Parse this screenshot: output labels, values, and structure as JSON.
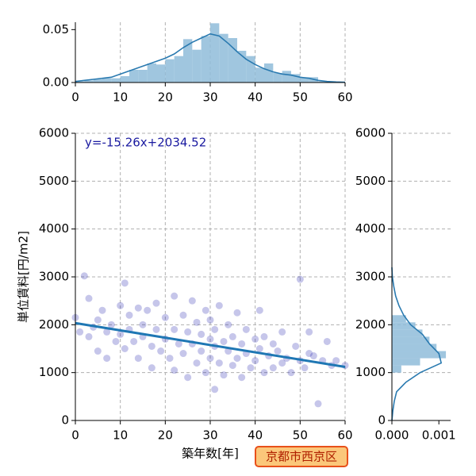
{
  "chart_data": [
    {
      "type": "scatter",
      "color": "#1a1aaa",
      "grid": true,
      "xlabel": "築年数[年]",
      "ylabel": "単位賃料[円/m2]",
      "annotation": "y=-15.26x+2034.52",
      "xlim": [
        0,
        60
      ],
      "ylim": [
        0,
        6000
      ],
      "xticks": [
        0,
        10,
        20,
        30,
        40,
        50,
        60
      ],
      "yticks": [
        0,
        1000,
        2000,
        3000,
        4000,
        5000,
        6000
      ],
      "x": [
        0,
        1,
        2,
        3,
        3,
        4,
        5,
        5,
        6,
        7,
        7,
        8,
        9,
        10,
        10,
        11,
        11,
        12,
        12,
        13,
        14,
        14,
        15,
        15,
        16,
        17,
        17,
        18,
        18,
        19,
        20,
        20,
        21,
        22,
        22,
        22,
        23,
        24,
        24,
        25,
        25,
        26,
        26,
        27,
        27,
        28,
        28,
        29,
        29,
        30,
        30,
        30,
        31,
        31,
        31,
        32,
        32,
        33,
        33,
        34,
        34,
        35,
        35,
        36,
        36,
        37,
        37,
        38,
        38,
        39,
        40,
        40,
        41,
        41,
        42,
        42,
        43,
        44,
        44,
        45,
        46,
        46,
        47,
        48,
        49,
        50,
        50,
        51,
        52,
        52,
        53,
        54,
        55,
        56,
        57,
        58,
        60
      ],
      "values": [
        2150,
        1850,
        3020,
        2550,
        1750,
        1950,
        2100,
        1450,
        2300,
        1850,
        1300,
        2000,
        1650,
        2400,
        1800,
        2870,
        1500,
        2200,
        1900,
        1650,
        2350,
        1300,
        2000,
        1750,
        2300,
        1550,
        1100,
        2450,
        1900,
        1450,
        2150,
        1700,
        1300,
        2600,
        1900,
        1050,
        1600,
        2200,
        1400,
        1850,
        900,
        2500,
        1600,
        1200,
        2050,
        1800,
        1450,
        2300,
        1000,
        1700,
        1300,
        2100,
        1550,
        650,
        1900,
        1200,
        2400,
        1650,
        950,
        1450,
        2000,
        1750,
        1150,
        1300,
        2250,
        1600,
        900,
        1400,
        1900,
        1100,
        1700,
        1250,
        2300,
        1500,
        1000,
        1750,
        1350,
        1600,
        1100,
        1450,
        1200,
        1850,
        1300,
        1000,
        1550,
        2950,
        1250,
        1100,
        1400,
        1850,
        1350,
        350,
        1250,
        1650,
        1150,
        1250,
        1150
      ],
      "regression": {
        "color": "#1f77b4",
        "x": [
          0,
          60
        ],
        "values": [
          2034.52,
          1118.92
        ]
      }
    },
    {
      "type": "histogram",
      "color": "#8fbcd9",
      "grid": true,
      "xlim": [
        0,
        60
      ],
      "ylim": [
        0,
        0.057
      ],
      "xticks": [
        0,
        10,
        20,
        30,
        40,
        50,
        60
      ],
      "yticks": [
        {
          "value": 0,
          "label": "0.00"
        },
        {
          "value": 0.05,
          "label": "0.05"
        }
      ],
      "bins": [
        0,
        2,
        4,
        6,
        8,
        10,
        12,
        14,
        16,
        18,
        20,
        22,
        24,
        26,
        28,
        30,
        32,
        34,
        36,
        38,
        40,
        42,
        44,
        46,
        48,
        50,
        52,
        54,
        56
      ],
      "values": [
        0.001,
        0.002,
        0.003,
        0.004,
        0.004,
        0.006,
        0.012,
        0.012,
        0.018,
        0.017,
        0.022,
        0.025,
        0.041,
        0.031,
        0.044,
        0.056,
        0.046,
        0.042,
        0.03,
        0.025,
        0.014,
        0.018,
        0.009,
        0.011,
        0.008,
        0.005,
        0.005,
        0.001
      ],
      "kde": {
        "color": "#2a7ab0",
        "x": [
          0,
          2,
          4,
          6,
          8,
          10,
          12,
          14,
          16,
          18,
          20,
          22,
          24,
          26,
          28,
          30,
          32,
          34,
          36,
          38,
          40,
          42,
          44,
          46,
          48,
          50,
          52,
          54,
          56,
          58,
          60
        ],
        "values": [
          0.001,
          0.002,
          0.003,
          0.004,
          0.005,
          0.008,
          0.011,
          0.014,
          0.017,
          0.02,
          0.023,
          0.027,
          0.033,
          0.038,
          0.042,
          0.046,
          0.044,
          0.037,
          0.029,
          0.022,
          0.017,
          0.013,
          0.01,
          0.008,
          0.007,
          0.005,
          0.004,
          0.002,
          0.001,
          0.0005,
          0.0002
        ]
      }
    },
    {
      "type": "histogram",
      "orientation": "horizontal",
      "color": "#8fbcd9",
      "grid": true,
      "xlim": [
        0,
        0.00125
      ],
      "ylim": [
        0,
        6000
      ],
      "xticks": [
        {
          "value": 0,
          "label": "0.000"
        },
        {
          "value": 0.001,
          "label": "0.001"
        }
      ],
      "yticks": [
        0,
        1000,
        2000,
        3000,
        4000,
        5000,
        6000
      ],
      "bins": [
        1000,
        1150,
        1300,
        1450,
        1600,
        1750,
        1900,
        2050,
        2200
      ],
      "values": [
        0.0002,
        0.0006,
        0.00115,
        0.00095,
        0.0008,
        0.00065,
        0.0005,
        0.0003
      ],
      "kde": {
        "color": "#2a7ab0",
        "y": [
          0,
          200,
          400,
          600,
          800,
          1000,
          1200,
          1400,
          1600,
          1800,
          2000,
          2200,
          2400,
          2600,
          2800,
          3000,
          3200
        ],
        "values": [
          0,
          2e-05,
          5e-05,
          0.0001,
          0.0003,
          0.0006,
          0.00105,
          0.001,
          0.0008,
          0.00065,
          0.0004,
          0.00025,
          0.00015,
          8e-05,
          4e-05,
          1e-05,
          0
        ]
      }
    }
  ],
  "label": "京都市西京区"
}
